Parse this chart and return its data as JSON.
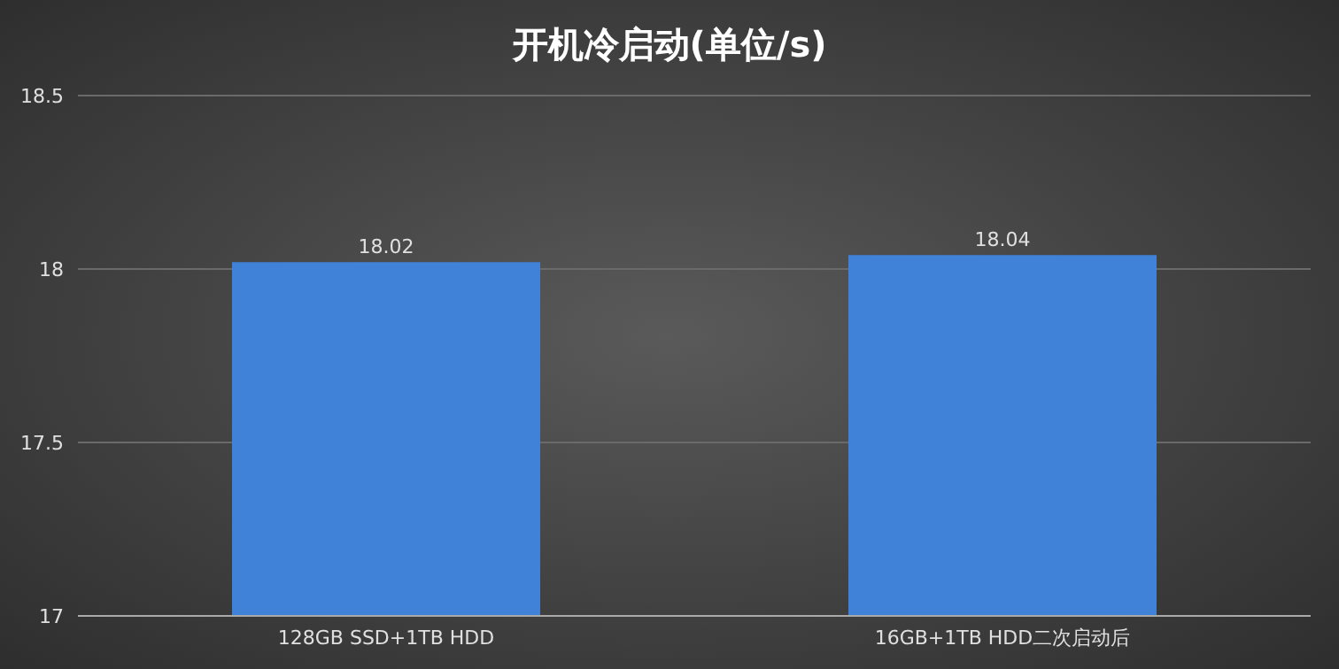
{
  "chart_data": {
    "type": "bar",
    "title": "开机冷启动(单位/s)",
    "categories": [
      "128GB SSD+1TB HDD",
      "16GB+1TB HDD二次启动后"
    ],
    "values": [
      18.02,
      18.04
    ],
    "color": "#3f82d8",
    "ylim": [
      17,
      18.5
    ],
    "yticks": [
      17,
      17.5,
      18,
      18.5
    ],
    "grid": "y",
    "data_labels": true
  }
}
